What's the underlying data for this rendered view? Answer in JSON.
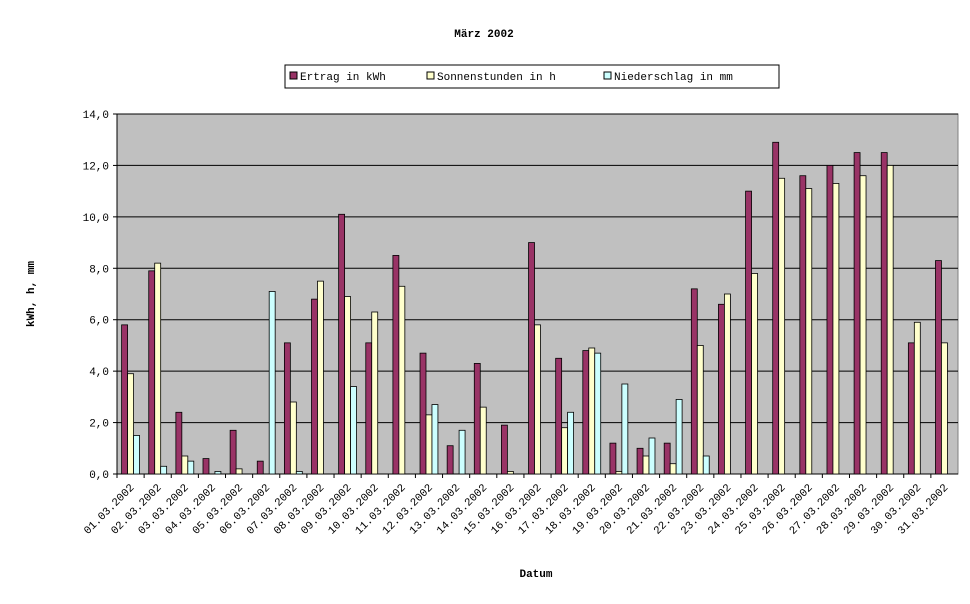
{
  "chart_data": {
    "type": "bar",
    "title": "März 2002",
    "x_label": "Datum",
    "y_label": "kWh, h, mm",
    "categories": [
      "01.03.2002",
      "02.03.2002",
      "03.03.2002",
      "04.03.2002",
      "05.03.2002",
      "06.03.2002",
      "07.03.2002",
      "08.03.2002",
      "09.03.2002",
      "10.03.2002",
      "11.03.2002",
      "12.03.2002",
      "13.03.2002",
      "14.03.2002",
      "15.03.2002",
      "16.03.2002",
      "17.03.2002",
      "18.03.2002",
      "19.03.2002",
      "20.03.2002",
      "21.03.2002",
      "22.03.2002",
      "23.03.2002",
      "24.03.2002",
      "25.03.2002",
      "26.03.2002",
      "27.03.2002",
      "28.03.2002",
      "29.03.2002",
      "30.03.2002",
      "31.03.2002"
    ],
    "series": [
      {
        "name": "Ertrag in kWh",
        "color": "#993366",
        "values": [
          5.8,
          7.9,
          2.4,
          0.6,
          1.7,
          0.5,
          5.1,
          6.8,
          10.1,
          5.1,
          8.5,
          4.7,
          1.1,
          4.3,
          1.9,
          9.0,
          4.5,
          4.8,
          1.2,
          1.0,
          1.2,
          7.2,
          6.6,
          11.0,
          12.9,
          11.6,
          12.0,
          12.5,
          12.5,
          5.1,
          8.3
        ]
      },
      {
        "name": "Sonnenstunden in h",
        "color": "#ffffcc",
        "values": [
          3.9,
          8.2,
          0.7,
          0,
          0.2,
          0,
          2.8,
          7.5,
          6.9,
          6.3,
          7.3,
          2.3,
          0,
          2.6,
          0.1,
          5.8,
          1.8,
          4.9,
          0.1,
          0.7,
          0.4,
          5.0,
          7.0,
          7.8,
          11.5,
          11.1,
          11.3,
          11.6,
          12.0,
          5.9,
          5.1
        ]
      },
      {
        "name": "Niederschlag in mm",
        "color": "#ccffff",
        "values": [
          1.5,
          0.3,
          0.5,
          0.1,
          0,
          7.1,
          0.1,
          0,
          3.4,
          0,
          0,
          2.7,
          1.7,
          0,
          0,
          0,
          2.4,
          4.7,
          3.5,
          1.4,
          2.9,
          0.7,
          0,
          0,
          0,
          0,
          0,
          0,
          0,
          0,
          0
        ]
      }
    ],
    "ylim": [
      0,
      14
    ],
    "yticks": [
      {
        "value": 0,
        "label": "0,0"
      },
      {
        "value": 2,
        "label": "2,0"
      },
      {
        "value": 4,
        "label": "4,0"
      },
      {
        "value": 6,
        "label": "6,0"
      },
      {
        "value": 8,
        "label": "8,0"
      },
      {
        "value": 10,
        "label": "10,0"
      },
      {
        "value": 12,
        "label": "12,0"
      },
      {
        "value": 14,
        "label": "14,0"
      }
    ],
    "grid": true,
    "legend": "top",
    "plot_background": "#c0c0c0"
  }
}
